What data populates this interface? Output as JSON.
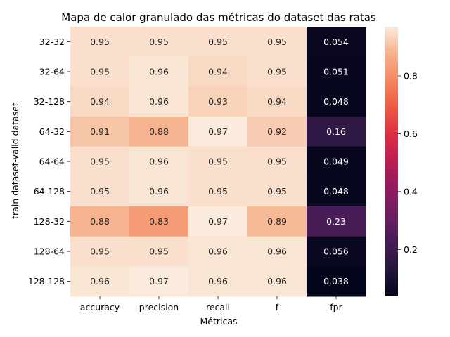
{
  "chart_data": {
    "type": "heatmap",
    "title": "Mapa de calor granulado das métricas do dataset das ratas",
    "xlabel": "Métricas",
    "ylabel": "train dataset-valid dataset",
    "x_categories": [
      "accuracy",
      "precision",
      "recall",
      "f",
      "fpr"
    ],
    "y_categories": [
      "32-32",
      "32-64",
      "32-128",
      "64-32",
      "64-64",
      "64-128",
      "128-32",
      "128-64",
      "128-128"
    ],
    "values": [
      [
        0.95,
        0.95,
        0.95,
        0.95,
        0.054
      ],
      [
        0.95,
        0.96,
        0.94,
        0.95,
        0.051
      ],
      [
        0.94,
        0.96,
        0.93,
        0.94,
        0.048
      ],
      [
        0.91,
        0.88,
        0.97,
        0.92,
        0.16
      ],
      [
        0.95,
        0.96,
        0.95,
        0.95,
        0.049
      ],
      [
        0.95,
        0.96,
        0.95,
        0.95,
        0.048
      ],
      [
        0.88,
        0.83,
        0.97,
        0.89,
        0.23
      ],
      [
        0.95,
        0.95,
        0.96,
        0.96,
        0.056
      ],
      [
        0.96,
        0.97,
        0.96,
        0.96,
        0.038
      ]
    ],
    "value_labels": [
      [
        "0.95",
        "0.95",
        "0.95",
        "0.95",
        "0.054"
      ],
      [
        "0.95",
        "0.96",
        "0.94",
        "0.95",
        "0.051"
      ],
      [
        "0.94",
        "0.96",
        "0.93",
        "0.94",
        "0.048"
      ],
      [
        "0.91",
        "0.88",
        "0.97",
        "0.92",
        "0.16"
      ],
      [
        "0.95",
        "0.96",
        "0.95",
        "0.95",
        "0.049"
      ],
      [
        "0.95",
        "0.96",
        "0.95",
        "0.95",
        "0.048"
      ],
      [
        "0.88",
        "0.83",
        "0.97",
        "0.89",
        "0.23"
      ],
      [
        "0.95",
        "0.95",
        "0.96",
        "0.96",
        "0.056"
      ],
      [
        "0.96",
        "0.97",
        "0.96",
        "0.96",
        "0.038"
      ]
    ],
    "colormap": "rocket",
    "vmin": 0.038,
    "vmax": 0.97,
    "colorbar": {
      "ticks": [
        0.2,
        0.4,
        0.6,
        0.8
      ],
      "tick_labels": [
        "0.2",
        "0.4",
        "0.6",
        "0.8"
      ],
      "placement": "right"
    },
    "grid": false
  }
}
